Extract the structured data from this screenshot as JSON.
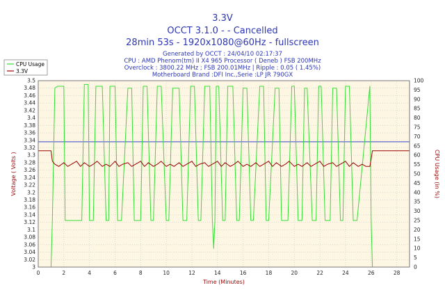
{
  "titles": {
    "line1": "3.3V",
    "line2": "OCCT 3.1.0 -   - Cancelled",
    "line3": "28min 53s - 1920x1080@60Hz - fullscreen"
  },
  "info": {
    "generated": "Generated by OCCT : 24/04/10 02:17:37",
    "cpu": "CPU : AMD Phenom(tm) II X4 965 Processor ( Deneb ) FSB 200MHz",
    "overclock": "Overclock : 3800.22 MHz ; FSB 200.01MHz | Ripple : 0.05 ( 1.45%)",
    "motherboard": "Motherboard Brand :DFI Inc.,Serie :LP JR 790GX"
  },
  "colors": {
    "cpu_usage": "#33dd33",
    "voltage": "#990000",
    "reference": "#3344cc",
    "plot_bg": "#fdf6e3",
    "grid": "#c8c8c8",
    "title": "#2b35b5",
    "left_axis_label": "#990000",
    "right_axis_label": "#990000",
    "x_axis_label": "#990000"
  },
  "chart_data": {
    "type": "line",
    "title": "3.3V",
    "xlabel": "Time (Minutes)",
    "ylabel_left": "Voltage ( Volts )",
    "ylabel_right": "CPU Usage (in %)",
    "xlim": [
      0,
      29
    ],
    "ylim_left": [
      3.0,
      3.5
    ],
    "ylim_right": [
      0,
      100
    ],
    "x_ticks": [
      "0",
      "2",
      "4",
      "6",
      "8",
      "10",
      "12",
      "14",
      "16",
      "18",
      "20",
      "22",
      "24",
      "26",
      "28"
    ],
    "y_left_ticks": [
      "3",
      "3.02",
      "3.04",
      "3.06",
      "3.08",
      "3.1",
      "3.12",
      "3.14",
      "3.16",
      "3.18",
      "3.2",
      "3.22",
      "3.24",
      "3.26",
      "3.28",
      "3.3",
      "3.32",
      "3.34",
      "3.36",
      "3.38",
      "3.4",
      "3.42",
      "3.44",
      "3.46",
      "3.48",
      "3.5"
    ],
    "y_right_ticks": [
      "0",
      "5",
      "10",
      "15",
      "20",
      "25",
      "30",
      "35",
      "40",
      "45",
      "50",
      "55",
      "60",
      "65",
      "70",
      "75",
      "80",
      "85",
      "90",
      "95",
      "100"
    ],
    "grid": true,
    "legend_position": "top-left",
    "reference_line": 3.336,
    "series": [
      {
        "name": "CPU Usage",
        "axis": "right",
        "x": [
          0,
          1.0,
          1.1,
          1.3,
          1.5,
          2.0,
          2.1,
          2.4,
          3.4,
          3.6,
          3.9,
          4.0,
          4.3,
          4.5,
          5.0,
          5.3,
          5.5,
          5.6,
          6.0,
          6.2,
          6.5,
          7.0,
          7.3,
          7.5,
          8.0,
          8.2,
          8.5,
          8.8,
          9.0,
          9.3,
          9.6,
          10.0,
          10.2,
          10.5,
          11.0,
          11.3,
          11.6,
          11.9,
          12.2,
          12.5,
          12.7,
          13.0,
          13.4,
          13.6,
          13.7,
          13.8,
          13.9,
          14.1,
          14.4,
          14.6,
          14.8,
          15.2,
          15.5,
          15.7,
          16.0,
          16.3,
          16.6,
          16.8,
          17.3,
          17.6,
          17.8,
          18.0,
          18.5,
          18.8,
          19.0,
          19.5,
          19.8,
          20.0,
          20.3,
          20.6,
          20.8,
          21.0,
          21.4,
          21.7,
          21.9,
          22.1,
          22.4,
          22.8,
          23.0,
          23.3,
          23.6,
          23.8,
          24.0,
          24.3,
          24.6,
          24.9,
          25.9,
          26.0,
          26.1
        ],
        "y": [
          0,
          0,
          25,
          96,
          97,
          97,
          25,
          25,
          25,
          98,
          98,
          25,
          25,
          97,
          97,
          25,
          25,
          97,
          97,
          25,
          25,
          96,
          96,
          25,
          25,
          97,
          97,
          25,
          25,
          97,
          97,
          25,
          25,
          96,
          96,
          25,
          25,
          97,
          97,
          25,
          25,
          97,
          97,
          25,
          10,
          25,
          97,
          97,
          25,
          25,
          97,
          97,
          25,
          25,
          96,
          96,
          25,
          25,
          97,
          97,
          25,
          25,
          96,
          96,
          25,
          25,
          97,
          97,
          25,
          25,
          96,
          96,
          25,
          25,
          97,
          97,
          25,
          25,
          96,
          96,
          25,
          25,
          97,
          97,
          25,
          25,
          97,
          25,
          0
        ]
      },
      {
        "name": "3.3V",
        "axis": "left",
        "x": [
          0,
          1.0,
          1.1,
          1.3,
          1.6,
          2.0,
          2.3,
          2.6,
          3.0,
          3.3,
          3.6,
          4.0,
          4.3,
          4.6,
          5.0,
          5.3,
          5.6,
          6.0,
          6.3,
          6.6,
          7.0,
          7.3,
          7.6,
          8.0,
          8.3,
          8.6,
          9.0,
          9.3,
          9.6,
          10.0,
          10.3,
          10.6,
          11.0,
          11.3,
          11.6,
          12.0,
          12.3,
          12.6,
          13.0,
          13.3,
          13.6,
          14.0,
          14.3,
          14.6,
          15.0,
          15.3,
          15.6,
          16.0,
          16.3,
          16.6,
          17.0,
          17.3,
          17.6,
          18.0,
          18.3,
          18.6,
          19.0,
          19.3,
          19.6,
          20.0,
          20.3,
          20.6,
          21.0,
          21.3,
          21.6,
          22.0,
          22.3,
          22.6,
          23.0,
          23.3,
          23.6,
          24.0,
          24.3,
          24.6,
          25.0,
          25.3,
          25.6,
          25.9,
          26.0,
          26.1,
          29
        ],
        "y": [
          3.312,
          3.312,
          3.284,
          3.276,
          3.27,
          3.28,
          3.27,
          3.276,
          3.284,
          3.27,
          3.28,
          3.27,
          3.276,
          3.284,
          3.27,
          3.276,
          3.27,
          3.284,
          3.27,
          3.276,
          3.28,
          3.27,
          3.276,
          3.284,
          3.27,
          3.28,
          3.27,
          3.276,
          3.284,
          3.27,
          3.276,
          3.27,
          3.28,
          3.27,
          3.276,
          3.284,
          3.27,
          3.276,
          3.28,
          3.27,
          3.276,
          3.284,
          3.27,
          3.28,
          3.27,
          3.276,
          3.284,
          3.27,
          3.276,
          3.27,
          3.28,
          3.27,
          3.276,
          3.284,
          3.27,
          3.28,
          3.27,
          3.276,
          3.284,
          3.27,
          3.276,
          3.27,
          3.28,
          3.27,
          3.276,
          3.284,
          3.27,
          3.276,
          3.28,
          3.27,
          3.276,
          3.284,
          3.27,
          3.28,
          3.27,
          3.276,
          3.27,
          3.27,
          3.29,
          3.312,
          3.312
        ]
      }
    ]
  }
}
